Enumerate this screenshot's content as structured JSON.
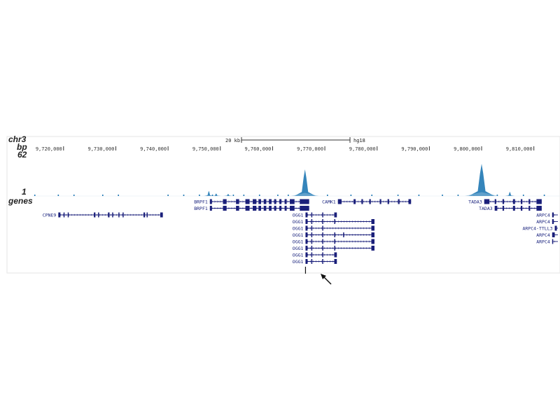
{
  "colors": {
    "gene": "#1a1f7a",
    "signal": "#1f78b4",
    "signal_light": "#7fb3d5",
    "frame": "#e6e6e6"
  },
  "track_labels": {
    "chrom": "chr3",
    "bp": "bp",
    "max": "62",
    "min": "1",
    "genes": "genes"
  },
  "scale_bar": {
    "size": "20 kb",
    "assembly": "hg18"
  },
  "axis": {
    "range_start": 9714000,
    "range_end": 9815000,
    "ticks": [
      "9,720,000",
      "9,730,000",
      "9,740,000",
      "9,750,000",
      "9,760,000",
      "9,770,000",
      "9,780,000",
      "9,790,000",
      "9,800,000",
      "9,810,000"
    ],
    "tick_positions": [
      9720000,
      9730000,
      9740000,
      9750000,
      9760000,
      9770000,
      9780000,
      9790000,
      9800000,
      9810000
    ]
  },
  "signal": {
    "max": 62,
    "peaks": [
      {
        "pos": 9766200,
        "height": 62
      },
      {
        "pos": 9800000,
        "height": 75
      },
      {
        "pos": 9747800,
        "height": 12
      },
      {
        "pos": 9805400,
        "height": 10
      },
      {
        "pos": 9749200,
        "height": 6
      },
      {
        "pos": 9751500,
        "height": 5
      }
    ],
    "small": [
      9714500,
      9719000,
      9722000,
      9727500,
      9730500,
      9740000,
      9743000,
      9746000,
      9748500,
      9752500,
      9754500,
      9757500,
      9761000,
      9763000,
      9770500,
      9775000,
      9779000,
      9784000,
      9788000,
      9792500,
      9795500,
      9798500,
      9803000,
      9808000,
      9812000
    ]
  },
  "genes": [
    {
      "label": "BRPF1",
      "start": 9748000,
      "end": 9767000,
      "strand": "+",
      "row": 0,
      "labelSide": "left",
      "exons": [
        [
          9748000,
          9748400
        ],
        [
          9750500,
          9751200
        ],
        [
          9753000,
          9753600
        ],
        [
          9754800,
          9755600
        ],
        [
          9756200,
          9756900
        ],
        [
          9757300,
          9757800
        ],
        [
          9758300,
          9758800
        ],
        [
          9759300,
          9759800
        ],
        [
          9760300,
          9760700
        ],
        [
          9761300,
          9761700
        ],
        [
          9762300,
          9762700
        ],
        [
          9763300,
          9764200
        ],
        [
          9765200,
          9767000
        ]
      ]
    },
    {
      "label": "BRPF1",
      "start": 9748000,
      "end": 9767000,
      "strand": "+",
      "row": 1,
      "labelSide": "left",
      "exons": [
        [
          9748000,
          9748400
        ],
        [
          9750500,
          9751200
        ],
        [
          9753000,
          9753600
        ],
        [
          9754800,
          9755600
        ],
        [
          9756200,
          9756900
        ],
        [
          9757300,
          9757800
        ],
        [
          9758300,
          9758800
        ],
        [
          9759300,
          9759800
        ],
        [
          9760300,
          9760700
        ],
        [
          9761300,
          9761700
        ],
        [
          9762300,
          9762700
        ],
        [
          9763300,
          9764200
        ],
        [
          9765200,
          9767000
        ]
      ]
    },
    {
      "label": "CAMK1",
      "start": 9772500,
      "end": 9786500,
      "strand": "-",
      "row": 0,
      "labelSide": "left",
      "exons": [
        [
          9772500,
          9773200
        ],
        [
          9775500,
          9775900
        ],
        [
          9777000,
          9777300
        ],
        [
          9778500,
          9778800
        ],
        [
          9780500,
          9780800
        ],
        [
          9782000,
          9782300
        ],
        [
          9784000,
          9784300
        ],
        [
          9786000,
          9786500
        ]
      ]
    },
    {
      "label": "TADA3",
      "start": 9800500,
      "end": 9811500,
      "strand": "-",
      "row": 0,
      "labelSide": "left",
      "exons": [
        [
          9800500,
          9801500
        ],
        [
          9802500,
          9802800
        ],
        [
          9804000,
          9804300
        ],
        [
          9806000,
          9806400
        ],
        [
          9807500,
          9807800
        ],
        [
          9809000,
          9809300
        ],
        [
          9810500,
          9811500
        ]
      ]
    },
    {
      "label": "TADA3",
      "start": 9802500,
      "end": 9811500,
      "strand": "-",
      "row": 1,
      "labelSide": "left",
      "exons": [
        [
          9802500,
          9803000
        ],
        [
          9804000,
          9804300
        ],
        [
          9806000,
          9806400
        ],
        [
          9807500,
          9807800
        ],
        [
          9809000,
          9809300
        ],
        [
          9810500,
          9811500
        ]
      ]
    },
    {
      "label": "CPNE9",
      "start": 9719000,
      "end": 9739000,
      "strand": "+",
      "row": 2,
      "labelSide": "left",
      "exons": [
        [
          9719000,
          9719400
        ],
        [
          9720000,
          9720200
        ],
        [
          9720800,
          9721000
        ],
        [
          9725800,
          9726100
        ],
        [
          9726600,
          9726800
        ],
        [
          9728500,
          9728800
        ],
        [
          9729300,
          9729500
        ],
        [
          9730500,
          9730700
        ],
        [
          9731300,
          9731500
        ],
        [
          9735300,
          9735600
        ],
        [
          9735900,
          9736100
        ],
        [
          9738500,
          9739000
        ]
      ]
    },
    {
      "label": "OGG1",
      "start": 9766300,
      "end": 9772300,
      "strand": "+",
      "row": 2,
      "labelSide": "left",
      "exons": [
        [
          9766300,
          9766700
        ],
        [
          9767400,
          9767600
        ],
        [
          9769500,
          9769700
        ],
        [
          9771800,
          9772300
        ]
      ]
    },
    {
      "label": "OGG1",
      "start": 9766300,
      "end": 9779500,
      "strand": "+",
      "row": 3,
      "labelSide": "left",
      "exons": [
        [
          9766300,
          9766700
        ],
        [
          9767400,
          9767600
        ],
        [
          9769500,
          9769700
        ],
        [
          9771800,
          9772000
        ],
        [
          9778900,
          9779500
        ]
      ]
    },
    {
      "label": "OGG1",
      "start": 9766300,
      "end": 9779500,
      "strand": "+",
      "row": 4,
      "labelSide": "left",
      "exons": [
        [
          9766300,
          9766700
        ],
        [
          9767400,
          9767600
        ],
        [
          9769500,
          9769700
        ],
        [
          9778900,
          9779500
        ]
      ]
    },
    {
      "label": "OGG1",
      "start": 9766300,
      "end": 9779500,
      "strand": "+",
      "row": 5,
      "labelSide": "left",
      "exons": [
        [
          9766300,
          9766700
        ],
        [
          9767400,
          9767600
        ],
        [
          9769500,
          9769700
        ],
        [
          9771800,
          9772000
        ],
        [
          9773500,
          9773700
        ],
        [
          9778900,
          9779500
        ]
      ]
    },
    {
      "label": "OGG1",
      "start": 9766300,
      "end": 9779500,
      "strand": "+",
      "row": 6,
      "labelSide": "left",
      "exons": [
        [
          9766300,
          9766700
        ],
        [
          9767400,
          9767600
        ],
        [
          9769500,
          9769700
        ],
        [
          9771800,
          9772000
        ],
        [
          9778900,
          9779500
        ]
      ]
    },
    {
      "label": "OGG1",
      "start": 9766300,
      "end": 9779500,
      "strand": "+",
      "row": 7,
      "labelSide": "left",
      "exons": [
        [
          9766300,
          9766700
        ],
        [
          9767400,
          9767600
        ],
        [
          9769500,
          9769700
        ],
        [
          9771800,
          9772000
        ],
        [
          9778900,
          9779500
        ]
      ]
    },
    {
      "label": "OGG1",
      "start": 9766300,
      "end": 9772300,
      "strand": "+",
      "row": 8,
      "labelSide": "left",
      "exons": [
        [
          9766300,
          9766700
        ],
        [
          9767400,
          9767600
        ],
        [
          9769500,
          9769700
        ],
        [
          9771800,
          9772300
        ]
      ]
    },
    {
      "label": "OGG1",
      "start": 9766300,
      "end": 9772300,
      "strand": "+",
      "row": 9,
      "labelSide": "left",
      "exons": [
        [
          9766300,
          9766700
        ],
        [
          9767400,
          9767600
        ],
        [
          9769500,
          9769700
        ],
        [
          9771800,
          9772300
        ]
      ]
    },
    {
      "label": "ARPC4",
      "start": 9813500,
      "end": 9815000,
      "strand": "+",
      "row": 2,
      "labelSide": "left",
      "exons": [
        [
          9813500,
          9813800
        ]
      ]
    },
    {
      "label": "ARPC4",
      "start": 9813500,
      "end": 9815000,
      "strand": "+",
      "row": 3,
      "labelSide": "left",
      "exons": [
        [
          9813500,
          9813800
        ]
      ]
    },
    {
      "label": "ARPC4-TTLL3",
      "start": 9814000,
      "end": 9815000,
      "strand": "+",
      "row": 4,
      "labelSide": "left",
      "exons": [
        [
          9814000,
          9814400
        ]
      ]
    },
    {
      "label": "ARPC4",
      "start": 9813500,
      "end": 9815000,
      "strand": "+",
      "row": 5,
      "labelSide": "left",
      "exons": [
        [
          9813500,
          9814000
        ]
      ]
    },
    {
      "label": "ARPC4",
      "start": 9813500,
      "end": 9815000,
      "strand": "+",
      "row": 6,
      "labelSide": "left",
      "exons": [
        [
          9813500,
          9813700
        ]
      ]
    }
  ],
  "annotation": {
    "arrow_target": 9766300
  }
}
